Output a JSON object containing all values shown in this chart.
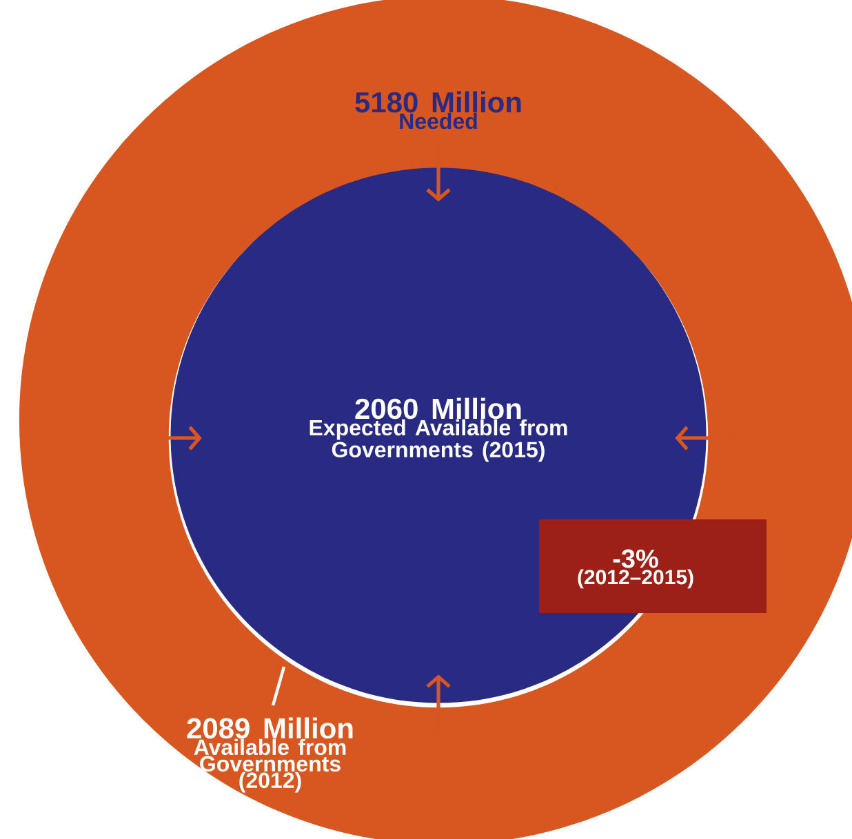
{
  "chart_data": {
    "type": "other",
    "categories": [
      "Needed",
      "Available from Governments (2012)",
      "Expected Available from Governments (2015)"
    ],
    "values": [
      5180,
      2089,
      2060
    ],
    "value_labels": [
      "5180 Million",
      "2089 Million",
      "2060 Million"
    ],
    "colors": [
      "#d85620",
      "#ffffff",
      "#292a83"
    ],
    "annotations": [
      "-3%",
      "(2012–2015)"
    ]
  }
}
